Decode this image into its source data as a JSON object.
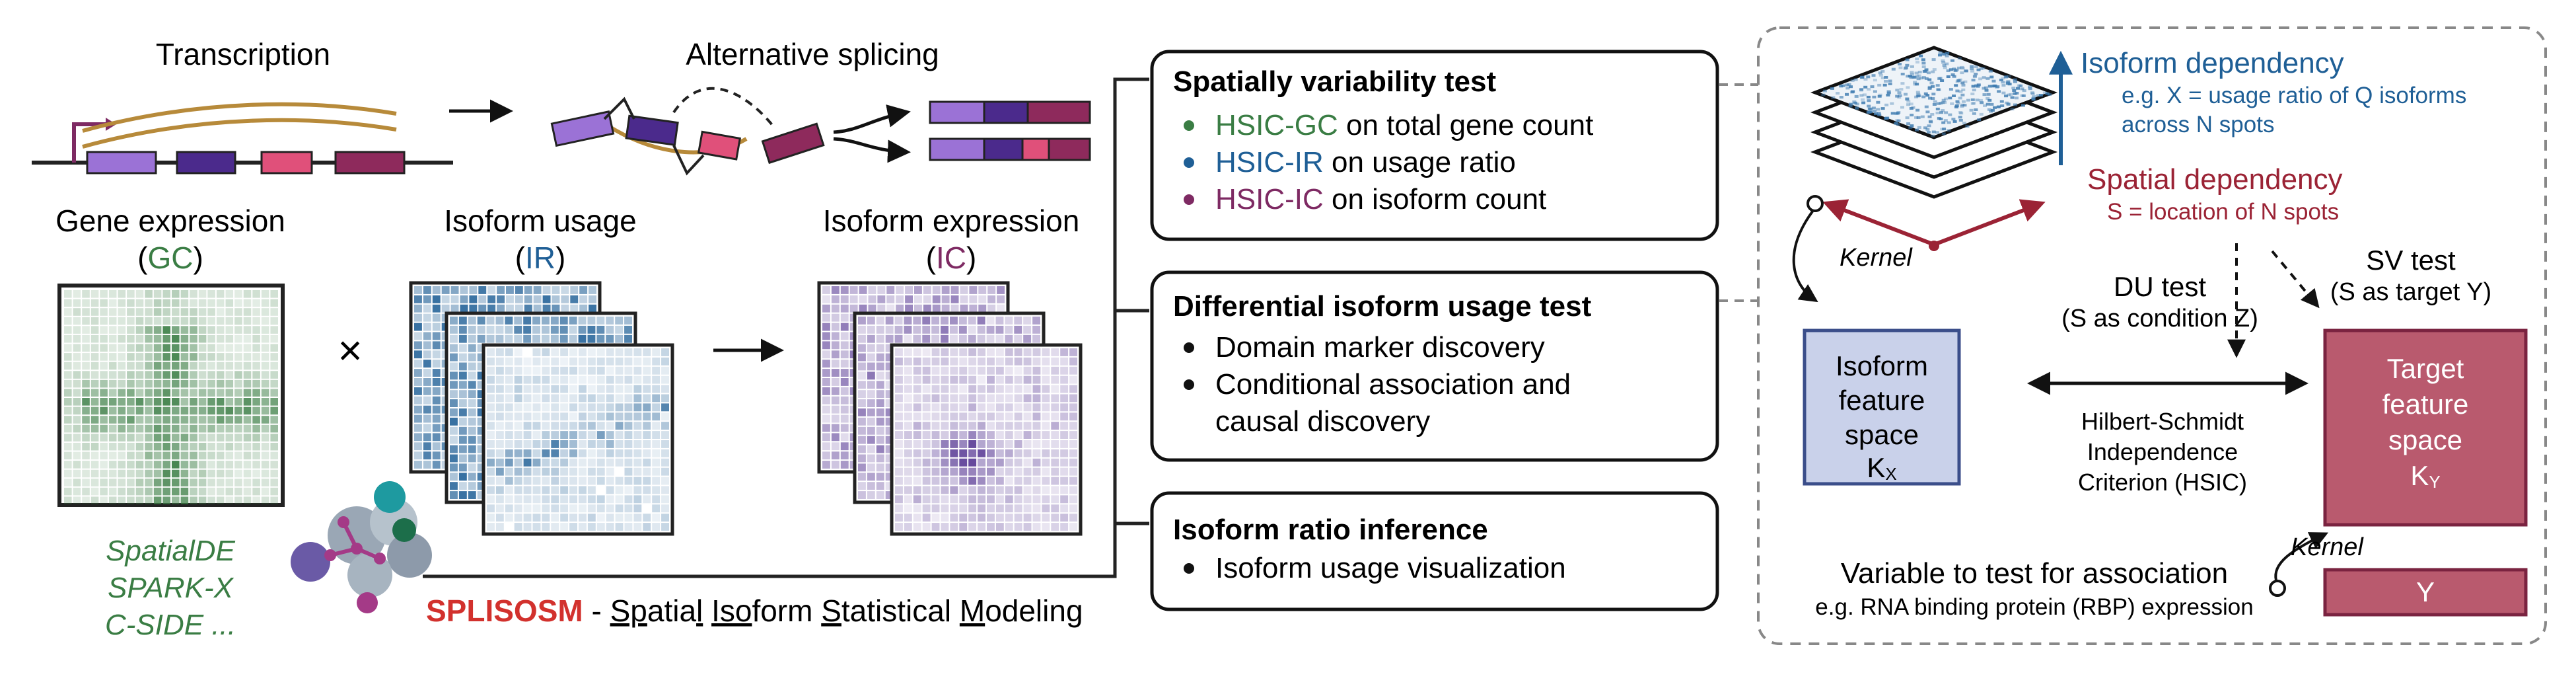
{
  "colors": {
    "gc_green": "#3a7d44",
    "ir_blue": "#1f5f96",
    "ic_purple": "#7e2a63",
    "splisosm_red": "#d2312d",
    "spatial_red": "#9b2335",
    "isoform_box_fill": "#c9d1ea",
    "isoform_box_stroke": "#3b4e8a",
    "target_box_fill": "#b95a6e",
    "target_box_stroke": "#7a2340",
    "exon_violet": "#9b72d6",
    "exon_indigo": "#4b2a8c",
    "exon_pink": "#e0507a",
    "exon_magenta": "#8e2a5c",
    "transcript_tan": "#b78a3a"
  },
  "left": {
    "transcription": "Transcription",
    "alternative_splicing": "Alternative splicing",
    "gene_expression": "Gene expression",
    "gc": "GC",
    "isoform_usage": "Isoform usage",
    "ir": "IR",
    "isoform_expression": "Isoform expression",
    "ic": "IC",
    "times": "×",
    "methods": [
      "SpatialDE",
      "SPARK-X",
      "C-SIDE ..."
    ],
    "splisosm_name": "SPLISOSM",
    "splisosm_dash": " - ",
    "splisosm_full": [
      "Sp",
      "atia",
      "l",
      " ",
      "Iso",
      "form",
      " ",
      "S",
      "tatistical",
      " ",
      "M",
      "odeling"
    ]
  },
  "tests": {
    "sv": {
      "title": "Spatially variability test",
      "items": [
        {
          "key": "HSIC-GC",
          "rest": " on total gene count"
        },
        {
          "key": "HSIC-IR",
          "rest": " on usage ratio"
        },
        {
          "key": "HSIC-IC",
          "rest": " on isoform count"
        }
      ]
    },
    "du": {
      "title": "Differential isoform usage test",
      "items": [
        "Domain marker discovery",
        "Conditional association and",
        "causal discovery"
      ]
    },
    "ratio": {
      "title": "Isoform ratio inference",
      "items": [
        "Isoform usage visualization"
      ]
    }
  },
  "right": {
    "isoform_dependency": "Isoform dependency",
    "isoform_dep_eg1": "e.g. X = usage ratio of Q isoforms",
    "isoform_dep_eg2": "across N spots",
    "spatial_dependency": "Spatial dependency",
    "spatial_dep_eg": "S = location of N spots",
    "kernel": "Kernel",
    "du_test": "DU test",
    "du_test_sub": "(S as condition Z)",
    "sv_test": "SV test",
    "sv_test_sub": "(S as target Y)",
    "isoform_feature": [
      "Isoform",
      "feature",
      "space"
    ],
    "kx_main": "K",
    "kx_sub": "X",
    "target_feature": [
      "Target",
      "feature",
      "space"
    ],
    "ky_main": "K",
    "ky_sub": "Y",
    "hsic": [
      "Hilbert-Schmidt",
      "Independence",
      "Criterion (HSIC)"
    ],
    "y_label": "Y",
    "variable_title": "Variable to test for association",
    "variable_eg": "e.g. RNA binding protein (RBP) expression"
  }
}
